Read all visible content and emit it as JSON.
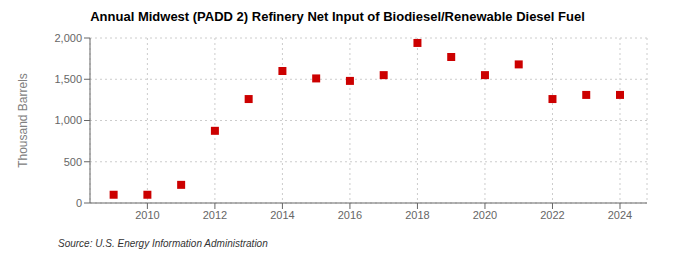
{
  "chart_data": {
    "type": "scatter",
    "title": "Annual Midwest (PADD 2) Refinery Net Input of Biodiesel/Renewable Diesel Fuel",
    "ylabel": "Thousand Barrels",
    "source": "Source: U.S. Energy Information Administration",
    "x": [
      2009,
      2010,
      2011,
      2012,
      2013,
      2014,
      2015,
      2016,
      2017,
      2018,
      2019,
      2020,
      2021,
      2022,
      2023,
      2024
    ],
    "values": [
      100,
      100,
      220,
      875,
      1260,
      1600,
      1510,
      1480,
      1550,
      1940,
      1770,
      1550,
      1680,
      1260,
      1310,
      1310
    ],
    "color": "#cc0000",
    "marker": "square",
    "xlim": [
      2008.3,
      2024.8
    ],
    "xticks": [
      2010,
      2012,
      2014,
      2016,
      2018,
      2020,
      2022,
      2024
    ],
    "ylim": [
      0,
      2000
    ],
    "yticks": [
      0,
      500,
      {
        "value": 1000,
        "label": "1,000"
      },
      {
        "value": 1500,
        "label": "1,500"
      },
      {
        "value": 2000,
        "label": "2,000"
      }
    ],
    "grid": true
  }
}
